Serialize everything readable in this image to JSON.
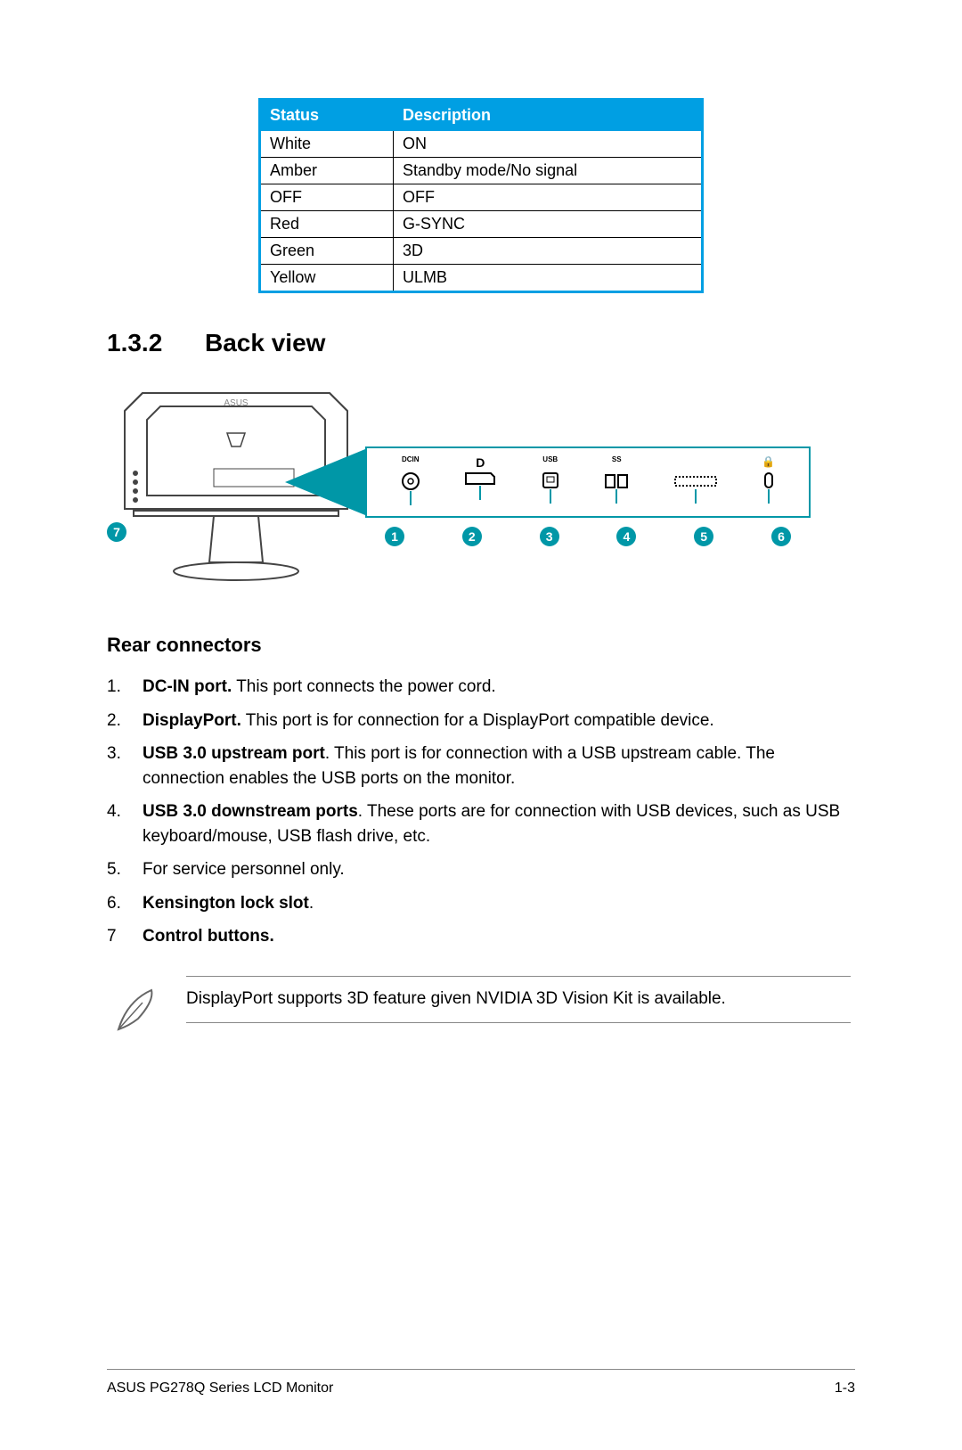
{
  "colors": {
    "table_border": "#009fe3",
    "table_header_bg": "#009fe3",
    "table_header_fg": "#ffffff",
    "accent": "#0097a7",
    "text": "#000000",
    "rule": "#888888",
    "bg": "#ffffff"
  },
  "status_table": {
    "columns": [
      "Status",
      "Description"
    ],
    "rows": [
      [
        "White",
        "ON"
      ],
      [
        "Amber",
        "Standby mode/No signal"
      ],
      [
        "OFF",
        "OFF"
      ],
      [
        "Red",
        "G-SYNC"
      ],
      [
        "Green",
        "3D"
      ],
      [
        "Yellow",
        "ULMB"
      ]
    ]
  },
  "section": {
    "number": "1.3.2",
    "title": "Back view"
  },
  "diagram": {
    "monitor_label": "7",
    "port_labels": [
      "DCIN",
      "D",
      "USB",
      "SS",
      "",
      ""
    ],
    "callouts": [
      "1",
      "2",
      "3",
      "4",
      "5",
      "6"
    ]
  },
  "rear_connectors": {
    "heading": "Rear connectors",
    "items": [
      {
        "n": "1.",
        "bold": "DC-IN port.",
        "text": " This port connects the power cord."
      },
      {
        "n": "2.",
        "bold": "DisplayPort.",
        "text": " This port is for connection for a DisplayPort compatible device."
      },
      {
        "n": "3.",
        "bold": "USB 3.0 upstream port",
        "text": ". This port is for connection with a USB upstream cable. The connection enables the USB ports on the monitor."
      },
      {
        "n": "4.",
        "bold": "USB 3.0 downstream ports",
        "text": ". These ports are for connection with USB devices, such as  USB keyboard/mouse, USB flash drive, etc."
      },
      {
        "n": "5.",
        "bold": "",
        "text": "For service personnel only."
      },
      {
        "n": "6.",
        "bold": "Kensington lock slot",
        "text": "."
      },
      {
        "n": "7",
        "bold": "Control buttons.",
        "text": ""
      }
    ]
  },
  "note": {
    "text": "DisplayPort supports 3D feature given NVIDIA 3D Vision Kit is available."
  },
  "footer": {
    "left": "ASUS PG278Q Series LCD Monitor",
    "right": "1-3"
  }
}
